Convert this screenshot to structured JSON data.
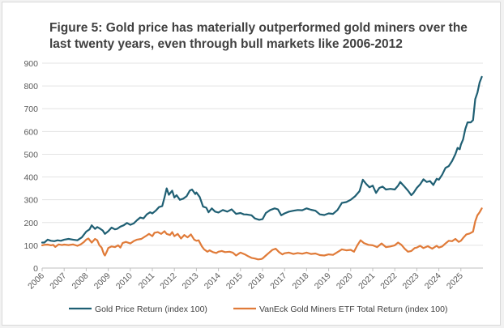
{
  "chart_data": {
    "type": "line",
    "title": "Figure 5: Gold price has materially outperformed gold miners over the last twenty years, even through bull markets like 2006-2012",
    "xlabel": "",
    "ylabel": "",
    "ylim": [
      0,
      900
    ],
    "yticks": [
      0,
      100,
      200,
      300,
      400,
      500,
      600,
      700,
      800,
      900
    ],
    "xlim": [
      2006,
      2025.95
    ],
    "xticks": [
      "2006",
      "2007",
      "2008",
      "2009",
      "2010",
      "2011",
      "2012",
      "2013",
      "2014",
      "2015",
      "2016",
      "2017",
      "2018",
      "2019",
      "2020",
      "2021",
      "2022",
      "2023",
      "2024",
      "2025"
    ],
    "grid": "horizontal",
    "legend_position": "bottom",
    "series": [
      {
        "name": "Gold Price Return (index 100)",
        "color": "#1f5f73",
        "points": [
          [
            2006.0,
            112
          ],
          [
            2006.1,
            112
          ],
          [
            2006.25,
            125
          ],
          [
            2006.4,
            120
          ],
          [
            2006.55,
            118
          ],
          [
            2006.7,
            122
          ],
          [
            2006.85,
            120
          ],
          [
            2007.0,
            125
          ],
          [
            2007.2,
            128
          ],
          [
            2007.4,
            125
          ],
          [
            2007.6,
            122
          ],
          [
            2007.8,
            135
          ],
          [
            2008.0,
            160
          ],
          [
            2008.15,
            170
          ],
          [
            2008.25,
            188
          ],
          [
            2008.4,
            172
          ],
          [
            2008.5,
            180
          ],
          [
            2008.6,
            175
          ],
          [
            2008.75,
            165
          ],
          [
            2008.85,
            150
          ],
          [
            2009.0,
            162
          ],
          [
            2009.15,
            178
          ],
          [
            2009.3,
            170
          ],
          [
            2009.4,
            172
          ],
          [
            2009.55,
            182
          ],
          [
            2009.7,
            188
          ],
          [
            2009.85,
            198
          ],
          [
            2010.0,
            190
          ],
          [
            2010.15,
            196
          ],
          [
            2010.3,
            210
          ],
          [
            2010.45,
            222
          ],
          [
            2010.6,
            218
          ],
          [
            2010.75,
            236
          ],
          [
            2010.9,
            245
          ],
          [
            2011.0,
            240
          ],
          [
            2011.15,
            252
          ],
          [
            2011.3,
            268
          ],
          [
            2011.45,
            272
          ],
          [
            2011.55,
            310
          ],
          [
            2011.65,
            350
          ],
          [
            2011.75,
            322
          ],
          [
            2011.9,
            340
          ],
          [
            2012.0,
            310
          ],
          [
            2012.1,
            320
          ],
          [
            2012.25,
            300
          ],
          [
            2012.4,
            305
          ],
          [
            2012.55,
            315
          ],
          [
            2012.7,
            340
          ],
          [
            2012.8,
            345
          ],
          [
            2012.95,
            325
          ],
          [
            2013.0,
            332
          ],
          [
            2013.15,
            312
          ],
          [
            2013.3,
            270
          ],
          [
            2013.45,
            265
          ],
          [
            2013.55,
            245
          ],
          [
            2013.7,
            262
          ],
          [
            2013.85,
            248
          ],
          [
            2014.0,
            244
          ],
          [
            2014.2,
            255
          ],
          [
            2014.4,
            248
          ],
          [
            2014.6,
            258
          ],
          [
            2014.8,
            238
          ],
          [
            2015.0,
            242
          ],
          [
            2015.15,
            236
          ],
          [
            2015.3,
            235
          ],
          [
            2015.5,
            232
          ],
          [
            2015.65,
            218
          ],
          [
            2015.85,
            212
          ],
          [
            2016.0,
            215
          ],
          [
            2016.15,
            242
          ],
          [
            2016.35,
            255
          ],
          [
            2016.55,
            262
          ],
          [
            2016.7,
            258
          ],
          [
            2016.85,
            232
          ],
          [
            2017.0,
            240
          ],
          [
            2017.2,
            248
          ],
          [
            2017.4,
            252
          ],
          [
            2017.6,
            255
          ],
          [
            2017.8,
            254
          ],
          [
            2018.0,
            262
          ],
          [
            2018.2,
            256
          ],
          [
            2018.4,
            252
          ],
          [
            2018.6,
            236
          ],
          [
            2018.8,
            233
          ],
          [
            2019.0,
            240
          ],
          [
            2019.2,
            238
          ],
          [
            2019.4,
            255
          ],
          [
            2019.6,
            286
          ],
          [
            2019.8,
            290
          ],
          [
            2020.0,
            300
          ],
          [
            2020.2,
            315
          ],
          [
            2020.4,
            338
          ],
          [
            2020.55,
            388
          ],
          [
            2020.7,
            370
          ],
          [
            2020.85,
            355
          ],
          [
            2021.0,
            362
          ],
          [
            2021.15,
            330
          ],
          [
            2021.3,
            352
          ],
          [
            2021.45,
            358
          ],
          [
            2021.6,
            345
          ],
          [
            2021.8,
            348
          ],
          [
            2022.0,
            345
          ],
          [
            2022.15,
            362
          ],
          [
            2022.25,
            378
          ],
          [
            2022.4,
            362
          ],
          [
            2022.6,
            340
          ],
          [
            2022.75,
            320
          ],
          [
            2022.85,
            330
          ],
          [
            2023.0,
            352
          ],
          [
            2023.15,
            368
          ],
          [
            2023.3,
            390
          ],
          [
            2023.45,
            378
          ],
          [
            2023.6,
            382
          ],
          [
            2023.75,
            365
          ],
          [
            2023.9,
            392
          ],
          [
            2024.0,
            388
          ],
          [
            2024.15,
            410
          ],
          [
            2024.3,
            440
          ],
          [
            2024.45,
            448
          ],
          [
            2024.6,
            470
          ],
          [
            2024.75,
            500
          ],
          [
            2024.85,
            528
          ],
          [
            2024.95,
            522
          ],
          [
            2025.0,
            542
          ],
          [
            2025.1,
            565
          ],
          [
            2025.2,
            610
          ],
          [
            2025.3,
            640
          ],
          [
            2025.45,
            640
          ],
          [
            2025.55,
            650
          ],
          [
            2025.65,
            742
          ],
          [
            2025.75,
            770
          ],
          [
            2025.85,
            815
          ],
          [
            2025.95,
            840
          ]
        ]
      },
      {
        "name": "VanEck Gold Miners ETF Total Return (index 100)",
        "color": "#e07b39",
        "points": [
          [
            2006.0,
            100
          ],
          [
            2006.1,
            102
          ],
          [
            2006.25,
            103
          ],
          [
            2006.4,
            100
          ],
          [
            2006.5,
            102
          ],
          [
            2006.6,
            93
          ],
          [
            2006.75,
            104
          ],
          [
            2006.9,
            101
          ],
          [
            2007.0,
            103
          ],
          [
            2007.2,
            101
          ],
          [
            2007.4,
            104
          ],
          [
            2007.6,
            98
          ],
          [
            2007.75,
            104
          ],
          [
            2007.9,
            115
          ],
          [
            2008.0,
            125
          ],
          [
            2008.1,
            130
          ],
          [
            2008.25,
            112
          ],
          [
            2008.4,
            128
          ],
          [
            2008.5,
            122
          ],
          [
            2008.6,
            100
          ],
          [
            2008.7,
            90
          ],
          [
            2008.8,
            62
          ],
          [
            2008.85,
            55
          ],
          [
            2008.95,
            75
          ],
          [
            2009.0,
            88
          ],
          [
            2009.15,
            95
          ],
          [
            2009.3,
            92
          ],
          [
            2009.45,
            100
          ],
          [
            2009.55,
            90
          ],
          [
            2009.65,
            110
          ],
          [
            2009.8,
            115
          ],
          [
            2010.0,
            108
          ],
          [
            2010.15,
            118
          ],
          [
            2010.3,
            125
          ],
          [
            2010.5,
            128
          ],
          [
            2010.7,
            140
          ],
          [
            2010.85,
            150
          ],
          [
            2011.0,
            140
          ],
          [
            2011.1,
            155
          ],
          [
            2011.25,
            158
          ],
          [
            2011.4,
            150
          ],
          [
            2011.55,
            162
          ],
          [
            2011.65,
            150
          ],
          [
            2011.8,
            145
          ],
          [
            2011.9,
            158
          ],
          [
            2012.0,
            140
          ],
          [
            2012.15,
            150
          ],
          [
            2012.3,
            130
          ],
          [
            2012.45,
            145
          ],
          [
            2012.6,
            135
          ],
          [
            2012.75,
            148
          ],
          [
            2012.9,
            125
          ],
          [
            2013.0,
            120
          ],
          [
            2013.1,
            122
          ],
          [
            2013.25,
            95
          ],
          [
            2013.35,
            82
          ],
          [
            2013.5,
            72
          ],
          [
            2013.6,
            78
          ],
          [
            2013.75,
            70
          ],
          [
            2013.9,
            66
          ],
          [
            2014.0,
            72
          ],
          [
            2014.15,
            75
          ],
          [
            2014.3,
            70
          ],
          [
            2014.5,
            72
          ],
          [
            2014.65,
            68
          ],
          [
            2014.8,
            55
          ],
          [
            2014.95,
            65
          ],
          [
            2015.0,
            68
          ],
          [
            2015.2,
            60
          ],
          [
            2015.35,
            52
          ],
          [
            2015.5,
            45
          ],
          [
            2015.65,
            42
          ],
          [
            2015.8,
            38
          ],
          [
            2015.95,
            40
          ],
          [
            2016.0,
            42
          ],
          [
            2016.15,
            55
          ],
          [
            2016.3,
            68
          ],
          [
            2016.45,
            80
          ],
          [
            2016.6,
            85
          ],
          [
            2016.75,
            70
          ],
          [
            2016.9,
            60
          ],
          [
            2017.0,
            65
          ],
          [
            2017.2,
            68
          ],
          [
            2017.4,
            62
          ],
          [
            2017.6,
            66
          ],
          [
            2017.8,
            63
          ],
          [
            2018.0,
            68
          ],
          [
            2018.2,
            62
          ],
          [
            2018.4,
            64
          ],
          [
            2018.6,
            57
          ],
          [
            2018.8,
            55
          ],
          [
            2019.0,
            60
          ],
          [
            2019.2,
            58
          ],
          [
            2019.4,
            70
          ],
          [
            2019.6,
            82
          ],
          [
            2019.8,
            78
          ],
          [
            2020.0,
            80
          ],
          [
            2020.15,
            72
          ],
          [
            2020.3,
            100
          ],
          [
            2020.45,
            122
          ],
          [
            2020.6,
            110
          ],
          [
            2020.8,
            102
          ],
          [
            2021.0,
            100
          ],
          [
            2021.2,
            92
          ],
          [
            2021.4,
            108
          ],
          [
            2021.6,
            92
          ],
          [
            2021.8,
            95
          ],
          [
            2022.0,
            100
          ],
          [
            2022.15,
            112
          ],
          [
            2022.3,
            102
          ],
          [
            2022.45,
            85
          ],
          [
            2022.6,
            72
          ],
          [
            2022.75,
            75
          ],
          [
            2022.9,
            88
          ],
          [
            2023.0,
            90
          ],
          [
            2023.15,
            98
          ],
          [
            2023.3,
            88
          ],
          [
            2023.5,
            96
          ],
          [
            2023.7,
            85
          ],
          [
            2023.9,
            98
          ],
          [
            2024.0,
            90
          ],
          [
            2024.15,
            95
          ],
          [
            2024.3,
            108
          ],
          [
            2024.45,
            120
          ],
          [
            2024.6,
            118
          ],
          [
            2024.75,
            128
          ],
          [
            2024.9,
            115
          ],
          [
            2025.0,
            120
          ],
          [
            2025.1,
            132
          ],
          [
            2025.25,
            148
          ],
          [
            2025.4,
            152
          ],
          [
            2025.55,
            160
          ],
          [
            2025.65,
            205
          ],
          [
            2025.75,
            232
          ],
          [
            2025.85,
            245
          ],
          [
            2025.95,
            262
          ]
        ]
      }
    ]
  }
}
